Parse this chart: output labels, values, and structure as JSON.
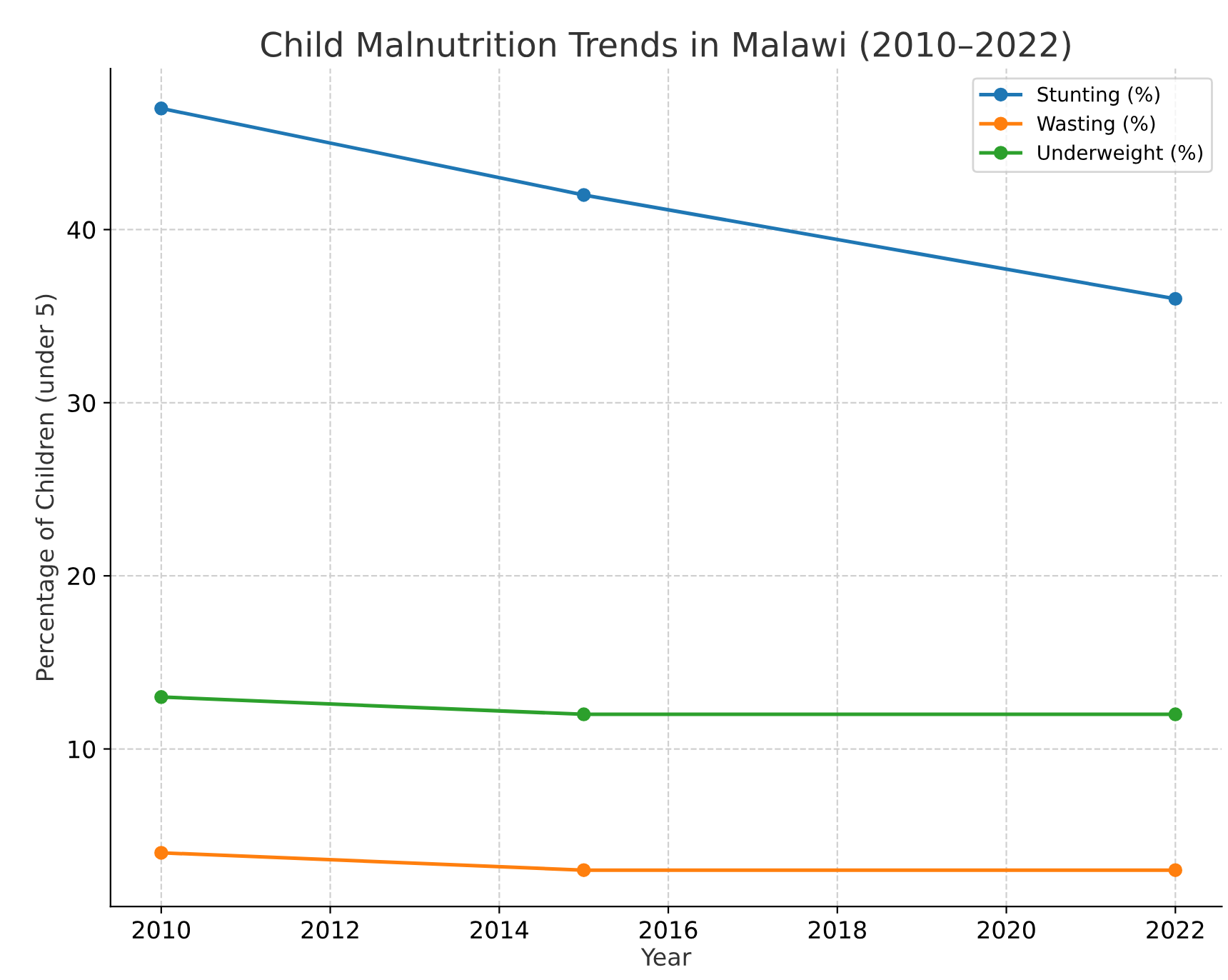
{
  "chart_data": {
    "type": "line",
    "title": "Child Malnutrition Trends in Malawi (2010–2022)",
    "xlabel": "Year",
    "ylabel": "Percentage of Children (under 5)",
    "x": [
      2010,
      2015,
      2022
    ],
    "series": [
      {
        "name": "Stunting (%)",
        "color": "#1f77b4",
        "values": [
          47,
          42,
          36
        ]
      },
      {
        "name": "Wasting (%)",
        "color": "#ff7f0e",
        "values": [
          4,
          3,
          3
        ]
      },
      {
        "name": "Underweight (%)",
        "color": "#2ca02c",
        "values": [
          13,
          12,
          12
        ]
      }
    ],
    "xlim": [
      2009.4,
      2022.55
    ],
    "xticks": [
      2010,
      2012,
      2014,
      2016,
      2018,
      2020,
      2022
    ],
    "ylim": [
      0.9,
      49.3
    ],
    "yticks": [
      10,
      20,
      30,
      40
    ],
    "grid": true,
    "legend": "top right",
    "marker": "circle",
    "line_style": "solid"
  }
}
